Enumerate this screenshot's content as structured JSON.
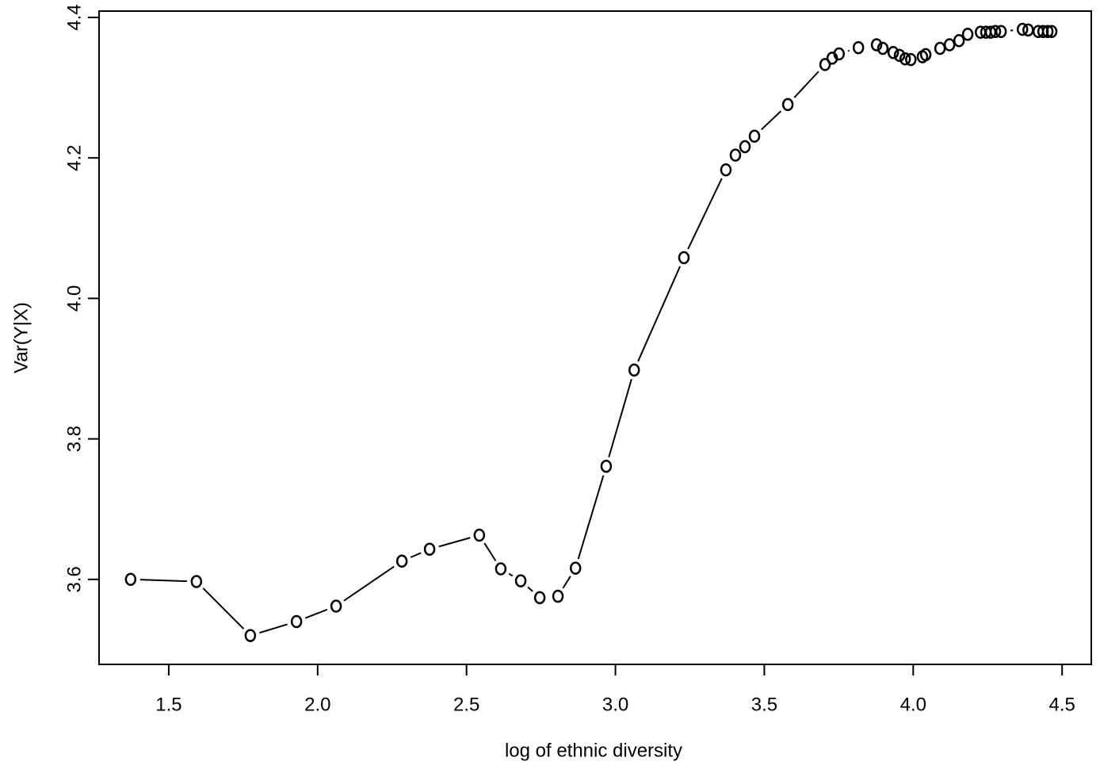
{
  "chart_data": {
    "type": "scatter",
    "line": true,
    "x_label": "log of ethnic diversity",
    "y_label": "Var(Y|X)",
    "x": [
      1.372,
      1.593,
      1.774,
      1.929,
      2.062,
      2.283,
      2.376,
      2.543,
      2.615,
      2.682,
      2.746,
      2.807,
      2.866,
      2.969,
      3.063,
      3.23,
      3.371,
      3.403,
      3.435,
      3.467,
      3.579,
      3.704,
      3.728,
      3.751,
      3.816,
      3.877,
      3.898,
      3.933,
      3.954,
      3.973,
      3.992,
      4.031,
      4.042,
      4.09,
      4.122,
      4.154,
      4.183,
      4.226,
      4.244,
      4.26,
      4.276,
      4.295,
      4.367,
      4.386,
      4.42,
      4.436,
      4.452,
      4.465
    ],
    "values": [
      3.6,
      3.597,
      3.52,
      3.54,
      3.562,
      3.626,
      3.643,
      3.663,
      3.615,
      3.598,
      3.574,
      3.576,
      3.616,
      3.761,
      3.898,
      4.058,
      4.183,
      4.204,
      4.216,
      4.231,
      4.276,
      4.333,
      4.342,
      4.348,
      4.357,
      4.361,
      4.356,
      4.35,
      4.346,
      4.341,
      4.34,
      4.344,
      4.347,
      4.356,
      4.361,
      4.367,
      4.376,
      4.379,
      4.379,
      4.379,
      4.38,
      4.38,
      4.383,
      4.382,
      4.38,
      4.38,
      4.38,
      4.38
    ],
    "color": "#000000",
    "xlim": [
      1.266,
      4.598
    ],
    "ylim": [
      3.479,
      4.409
    ],
    "xticks": [
      1.5,
      {
        "value": 2,
        "label": "2.0"
      },
      2.5,
      {
        "value": 3,
        "label": "3.0"
      },
      3.5,
      {
        "value": 4,
        "label": "4.0"
      },
      4.5
    ],
    "yticks": [
      3.6,
      3.8,
      {
        "value": 4,
        "label": "4.0"
      },
      4.2,
      4.4
    ]
  }
}
